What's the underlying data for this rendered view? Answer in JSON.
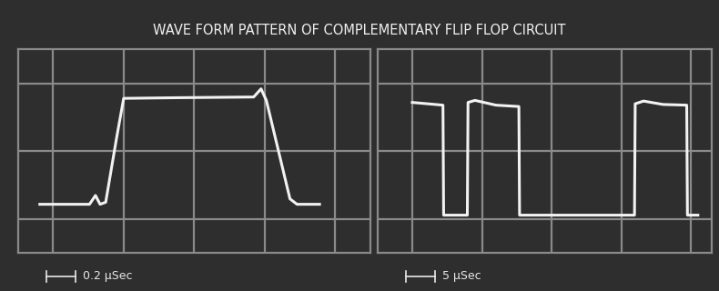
{
  "title": "WAVE FORM PATTERN OF COMPLEMENTARY FLIP FLOP CIRCUIT",
  "chart_data": [
    {
      "type": "line",
      "annotation": "0.2 μSec",
      "color": "#f2f2f2",
      "x": [
        -0.038,
        0.103,
        0.12,
        0.133,
        0.149,
        0.18,
        0.2,
        0.359,
        0.569,
        0.59,
        0.605,
        0.672,
        0.692,
        0.756
      ],
      "values": [
        0.22,
        0.22,
        0.35,
        0.22,
        0.25,
        1.2,
        1.78,
        1.79,
        1.8,
        1.92,
        1.75,
        0.3,
        0.22,
        0.22
      ],
      "xlim": [
        -0.1,
        0.9
      ],
      "xticks": [
        0,
        0.2,
        0.4,
        0.6,
        0.8
      ],
      "ylim": [
        -0.5,
        2.5
      ],
      "yticks": [
        0,
        1,
        2
      ],
      "grid": true,
      "tick_labels": false
    },
    {
      "type": "line",
      "annotation": "5 μSec",
      "color": "#f2f2f2",
      "x": [
        0,
        2.2,
        2.25,
        3.95,
        4.0,
        4.5,
        6,
        7.65,
        7.7,
        15.95,
        16.0,
        16.6,
        18,
        19.7,
        19.75,
        20.5
      ],
      "values": [
        1.72,
        1.68,
        0.06,
        0.06,
        1.72,
        1.75,
        1.68,
        1.66,
        0.06,
        0.06,
        1.7,
        1.74,
        1.69,
        1.68,
        0.06,
        0.06
      ],
      "xlim": [
        -2.5,
        21.5
      ],
      "xticks": [
        0,
        5,
        10,
        15,
        20
      ],
      "ylim": [
        -0.5,
        2.5
      ],
      "yticks": [
        0,
        1,
        2
      ],
      "grid": true,
      "tick_labels": false
    }
  ]
}
